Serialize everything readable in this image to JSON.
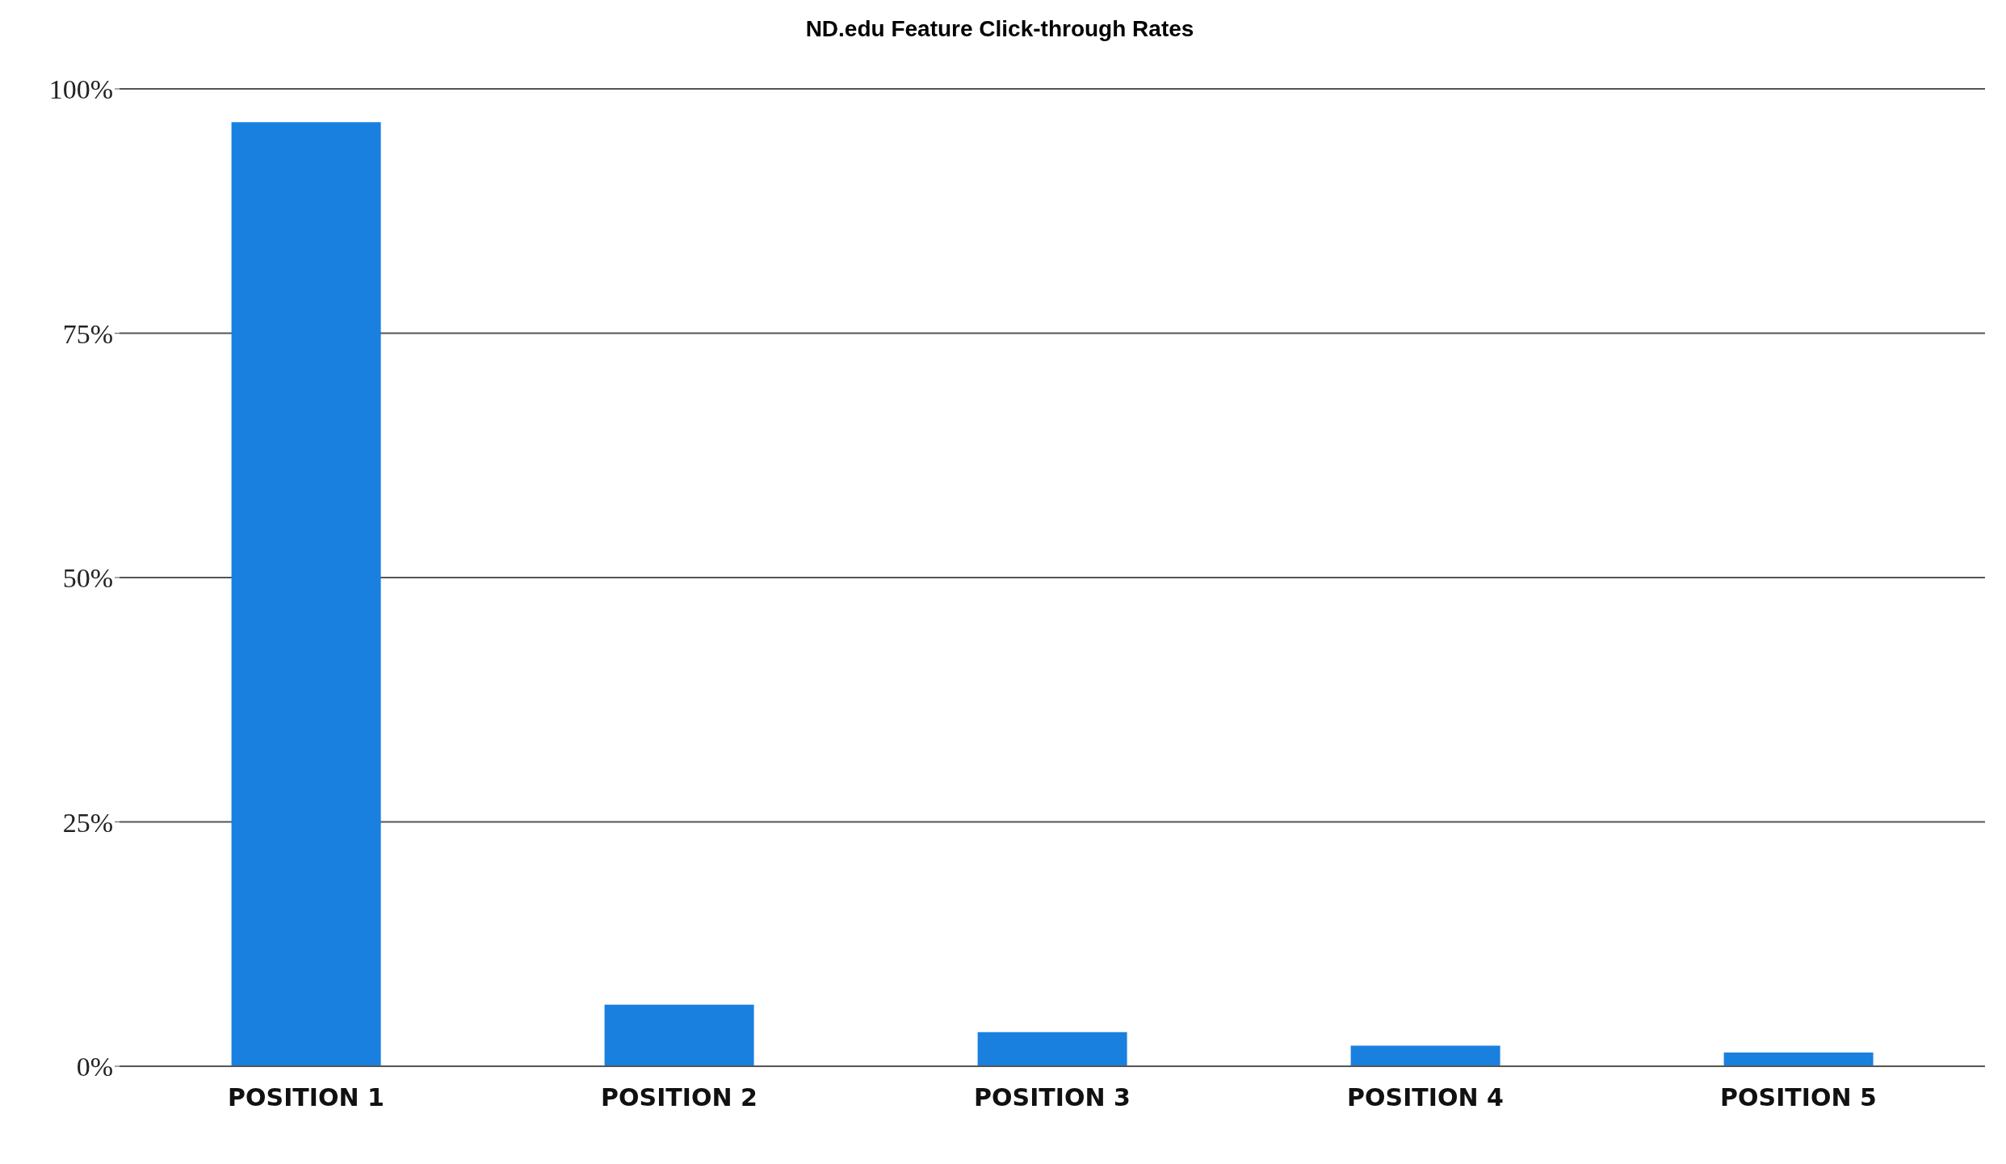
{
  "chart_data": {
    "type": "bar",
    "title": "ND.edu Feature Click-through Rates",
    "categories": [
      "POSITION 1",
      "POSITION 2",
      "POSITION 3",
      "POSITION 4",
      "POSITION 5"
    ],
    "values": [
      96.6,
      6.3,
      3.5,
      2.1,
      1.4
    ],
    "color": "#1a80e0",
    "ylim": [
      0,
      100
    ],
    "yticks": [
      {
        "value": 0,
        "label": "0%"
      },
      {
        "value": 25,
        "label": "25%"
      },
      {
        "value": 50,
        "label": "50%"
      },
      {
        "value": 75,
        "label": "75%"
      },
      {
        "value": 100,
        "label": "100%"
      }
    ],
    "grid": "y",
    "legend": false
  }
}
